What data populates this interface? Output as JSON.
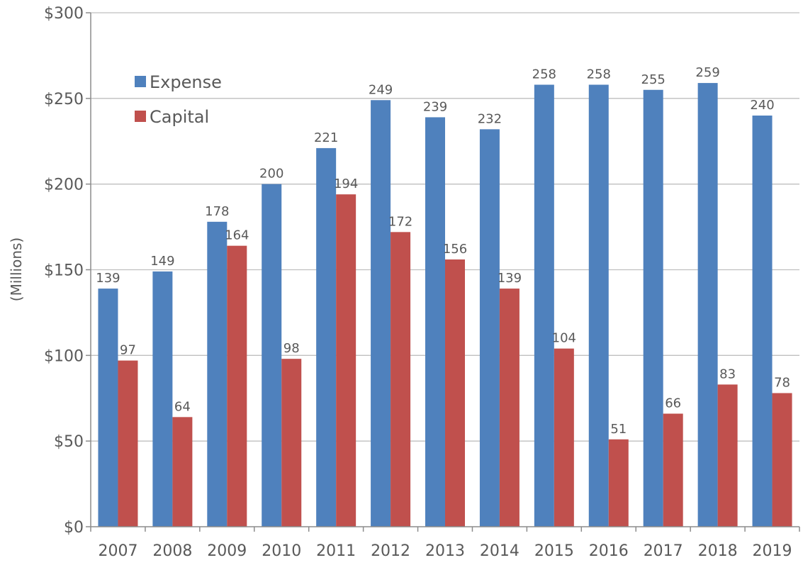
{
  "chart_data": {
    "type": "bar",
    "title": "",
    "xlabel": "",
    "ylabel": "(Millions)",
    "categories": [
      "2007",
      "2008",
      "2009",
      "2010",
      "2011",
      "2012",
      "2013",
      "2014",
      "2015",
      "2016",
      "2017",
      "2018",
      "2019"
    ],
    "series": [
      {
        "name": "Expense",
        "color": "#4f81bd",
        "values": [
          139,
          149,
          178,
          200,
          221,
          249,
          239,
          232,
          258,
          258,
          255,
          259,
          240
        ]
      },
      {
        "name": "Capital",
        "color": "#c0504d",
        "values": [
          97,
          64,
          164,
          98,
          194,
          172,
          156,
          139,
          104,
          51,
          66,
          83,
          78
        ]
      }
    ],
    "ylim": [
      0,
      300
    ],
    "yticks": [
      0,
      50,
      100,
      150,
      200,
      250,
      300
    ],
    "ytick_labels": [
      "$0",
      "$50",
      "$100",
      "$150",
      "$200",
      "$250",
      "$300"
    ],
    "grid": true,
    "legend_position": "top-left"
  }
}
